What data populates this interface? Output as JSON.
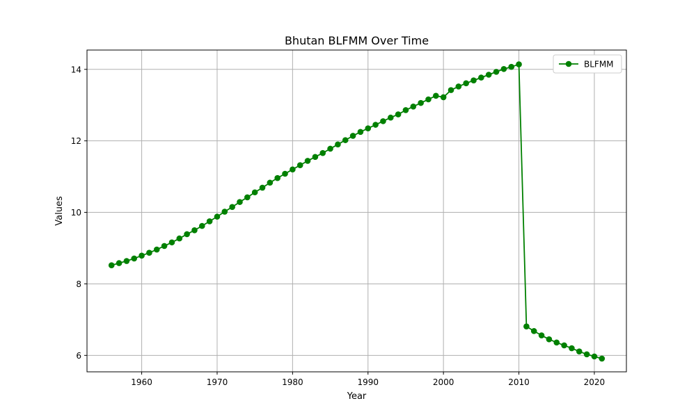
{
  "chart_data": {
    "type": "line",
    "title": "Bhutan BLFMM Over Time",
    "xlabel": "Year",
    "ylabel": "Values",
    "xlim": [
      1952.75,
      2024.25
    ],
    "ylim": [
      5.54,
      14.54
    ],
    "xticks": [
      1960,
      1970,
      1980,
      1990,
      2000,
      2010,
      2020
    ],
    "xtick_labels": [
      "1960",
      "1970",
      "1980",
      "1990",
      "2000",
      "2010",
      "2020"
    ],
    "yticks": [
      6,
      8,
      10,
      12,
      14
    ],
    "ytick_labels": [
      "6",
      "8",
      "10",
      "12",
      "14"
    ],
    "grid": true,
    "legend_position": "top-right",
    "series": [
      {
        "name": "BLFMM",
        "color": "#008000",
        "marker": "circle",
        "x": [
          1956,
          1957,
          1958,
          1959,
          1960,
          1961,
          1962,
          1963,
          1964,
          1965,
          1966,
          1967,
          1968,
          1969,
          1970,
          1971,
          1972,
          1973,
          1974,
          1975,
          1976,
          1977,
          1978,
          1979,
          1980,
          1981,
          1982,
          1983,
          1984,
          1985,
          1986,
          1987,
          1988,
          1989,
          1990,
          1991,
          1992,
          1993,
          1994,
          1995,
          1996,
          1997,
          1998,
          1999,
          2000,
          2001,
          2002,
          2003,
          2004,
          2005,
          2006,
          2007,
          2008,
          2009,
          2010,
          2011,
          2012,
          2013,
          2014,
          2015,
          2016,
          2017,
          2018,
          2019,
          2020,
          2021
        ],
        "y": [
          8.52,
          8.58,
          8.64,
          8.71,
          8.79,
          8.87,
          8.96,
          9.06,
          9.16,
          9.27,
          9.39,
          9.5,
          9.62,
          9.75,
          9.88,
          10.02,
          10.15,
          10.29,
          10.42,
          10.56,
          10.69,
          10.83,
          10.96,
          11.08,
          11.2,
          11.32,
          11.44,
          11.55,
          11.66,
          11.78,
          11.9,
          12.02,
          12.14,
          12.25,
          12.35,
          12.45,
          12.55,
          12.65,
          12.74,
          12.86,
          12.96,
          13.06,
          13.16,
          13.26,
          13.22,
          13.42,
          13.52,
          13.61,
          13.69,
          13.77,
          13.85,
          13.93,
          14.01,
          14.07,
          14.14,
          6.81,
          6.68,
          6.56,
          6.45,
          6.36,
          6.28,
          6.2,
          6.11,
          6.03,
          5.97,
          5.91
        ]
      }
    ]
  }
}
